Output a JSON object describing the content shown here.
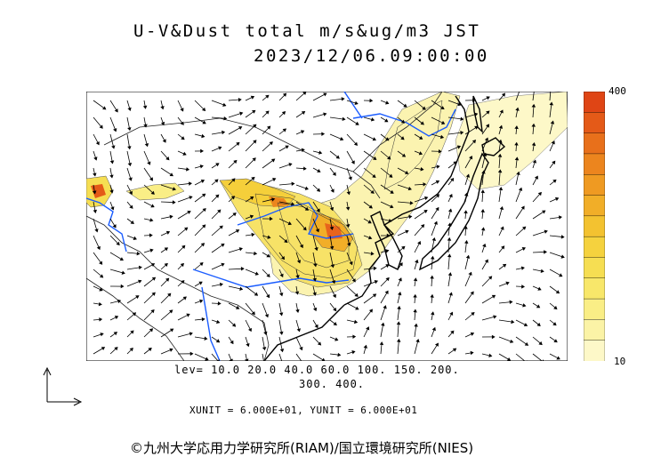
{
  "title": "U-V&Dust total m/s&ug/m3 JST",
  "datetime": "2023/12/06.09:00:00",
  "colorbar": {
    "max_label": "400",
    "min_label": "10",
    "colors": [
      "#fdf8c8",
      "#fbf3a6",
      "#faee86",
      "#f8e76a",
      "#f6de52",
      "#f5d23e",
      "#f3c230",
      "#f1ae28",
      "#ef9a22",
      "#ec851e",
      "#e8701b",
      "#e45a18",
      "#df4515"
    ]
  },
  "levels_line1": "lev= 10.0 20.0 40.0 60.0 100. 150. 200.",
  "levels_line2": "300. 400.",
  "units_line": "XUNIT = 6.000E+01, YUNIT = 6.000E+01",
  "credit": "©九州大学応用力学研究所(RIAM)/国立環境研究所(NIES)",
  "map": {
    "dust_color_low": "#fbf3b0",
    "dust_color_mid": "#f4d43e",
    "dust_color_high": "#e8641c",
    "river_color": "#1a5cff",
    "coast_color": "#000000"
  }
}
